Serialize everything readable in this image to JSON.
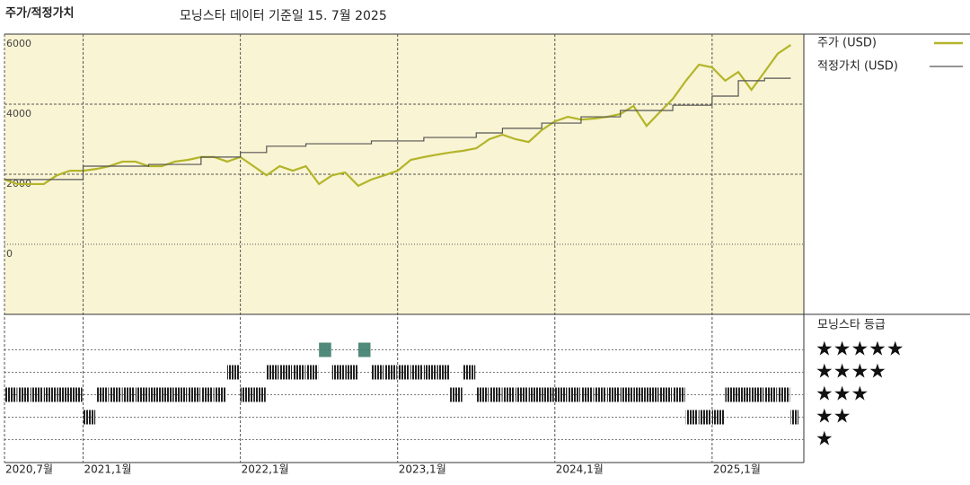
{
  "title": "주가/적정가치",
  "subtitle": "모닝스타 데이터 기준일 15. 7월 2025",
  "chart_data": [
    {
      "type": "line",
      "x": [
        "2020-07",
        "2020-08",
        "2020-09",
        "2020-10",
        "2020-11",
        "2020-12",
        "2021-01",
        "2021-02",
        "2021-03",
        "2021-04",
        "2021-05",
        "2021-06",
        "2021-07",
        "2021-08",
        "2021-09",
        "2021-10",
        "2021-11",
        "2021-12",
        "2022-01",
        "2022-02",
        "2022-03",
        "2022-04",
        "2022-05",
        "2022-06",
        "2022-07",
        "2022-08",
        "2022-09",
        "2022-10",
        "2022-11",
        "2022-12",
        "2023-01",
        "2023-02",
        "2023-03",
        "2023-04",
        "2023-05",
        "2023-06",
        "2023-07",
        "2023-08",
        "2023-09",
        "2023-10",
        "2023-11",
        "2023-12",
        "2024-01",
        "2024-02",
        "2024-03",
        "2024-04",
        "2024-05",
        "2024-06",
        "2024-07",
        "2024-08",
        "2024-09",
        "2024-10",
        "2024-11",
        "2024-12",
        "2025-01",
        "2025-02",
        "2025-03",
        "2025-04",
        "2025-05",
        "2025-06",
        "2025-07"
      ],
      "series": [
        {
          "name": "주가 (USD)",
          "color": "#b3b52a",
          "values": [
            1850,
            1720,
            1720,
            1720,
            1970,
            2100,
            2100,
            2150,
            2230,
            2360,
            2360,
            2230,
            2230,
            2360,
            2410,
            2490,
            2490,
            2360,
            2490,
            2230,
            1970,
            2230,
            2100,
            2230,
            1720,
            1970,
            2050,
            1670,
            1850,
            1970,
            2100,
            2410,
            2490,
            2560,
            2620,
            2670,
            2740,
            3000,
            3130,
            3000,
            2920,
            3260,
            3510,
            3640,
            3560,
            3590,
            3640,
            3720,
            3950,
            3380,
            3770,
            4150,
            4670,
            5130,
            5050,
            4670,
            4920,
            4410,
            4920,
            5440,
            5690
          ]
        },
        {
          "name": "적정가치 (USD)",
          "color": "#555555",
          "step": true,
          "values": [
            1850,
            1850,
            1850,
            1850,
            1850,
            1850,
            2230,
            2230,
            2230,
            2230,
            2230,
            2280,
            2280,
            2280,
            2280,
            2490,
            2490,
            2490,
            2620,
            2620,
            2800,
            2800,
            2800,
            2870,
            2870,
            2870,
            2870,
            2870,
            2950,
            2950,
            2950,
            2950,
            3050,
            3050,
            3050,
            3050,
            3180,
            3180,
            3310,
            3310,
            3310,
            3460,
            3460,
            3460,
            3640,
            3640,
            3640,
            3820,
            3820,
            3820,
            3820,
            3970,
            3970,
            3970,
            4230,
            4230,
            4670,
            4670,
            4740,
            4740,
            4740
          ]
        }
      ],
      "xlim": [
        "2020-07",
        "2025-08"
      ],
      "xticks": [
        {
          "value": "2020-07",
          "label": "2020,7월"
        },
        {
          "value": "2021-01",
          "label": "2021,1월"
        },
        {
          "value": "2022-01",
          "label": "2022,1월"
        },
        {
          "value": "2023-01",
          "label": "2023,1월"
        },
        {
          "value": "2024-01",
          "label": "2024,1월"
        },
        {
          "value": "2025-01",
          "label": "2025,1월"
        }
      ],
      "ylim": [
        -2000,
        6000
      ],
      "yticks": [
        0,
        2000,
        4000,
        6000
      ],
      "grid": true,
      "background": "#f9f4d3"
    },
    {
      "type": "rating",
      "title": "모닝스타 등급",
      "color": "#222222",
      "top_color": "#3d7d6b",
      "values": [
        3,
        3,
        3,
        3,
        3,
        3,
        2,
        3,
        3,
        3,
        3,
        3,
        3,
        3,
        3,
        3,
        3,
        4,
        3,
        3,
        4,
        4,
        4,
        4,
        5,
        4,
        4,
        5,
        4,
        4,
        4,
        4,
        4,
        4,
        3,
        4,
        3,
        3,
        3,
        3,
        3,
        3,
        3,
        3,
        3,
        3,
        3,
        3,
        3,
        3,
        3,
        3,
        2,
        2,
        2,
        3,
        3,
        3,
        3,
        3,
        2
      ],
      "ylim": [
        0,
        6.5
      ],
      "yticks": [
        {
          "value": 5,
          "label": "★★★★★"
        },
        {
          "value": 4,
          "label": "★★★★"
        },
        {
          "value": 3,
          "label": "★★★"
        },
        {
          "value": 2,
          "label": "★★"
        },
        {
          "value": 1,
          "label": "★"
        }
      ]
    }
  ]
}
